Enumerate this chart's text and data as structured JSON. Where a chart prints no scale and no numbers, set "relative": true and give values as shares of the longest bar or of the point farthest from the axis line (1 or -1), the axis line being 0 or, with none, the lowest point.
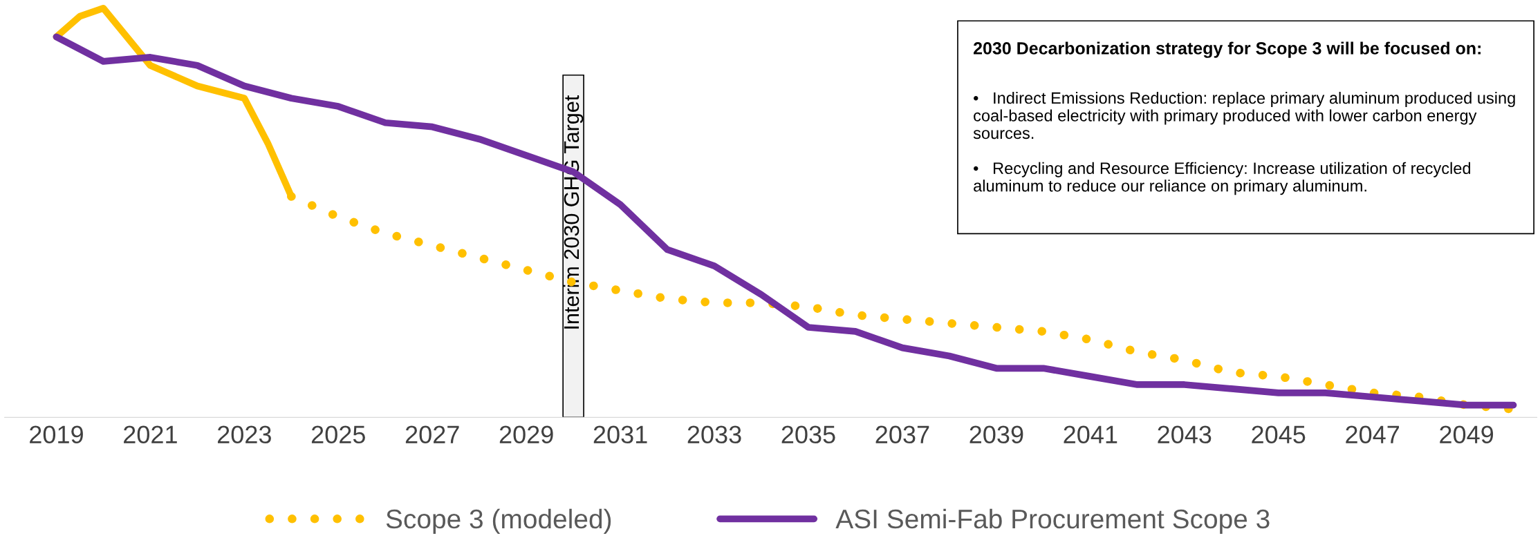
{
  "chart_data": {
    "type": "line",
    "relative": true,
    "x": [
      2019,
      2019.5,
      2020,
      2021,
      2022,
      2023,
      2023.5,
      2024
    ],
    "xlim": [
      2017.9,
      2050.5
    ],
    "xticks": [
      2019,
      2021,
      2023,
      2025,
      2027,
      2029,
      2031,
      2033,
      2035,
      2037,
      2039,
      2041,
      2043,
      2045,
      2047,
      2049
    ],
    "series": [
      {
        "color": "#ffc000",
        "line_style": "solid",
        "values": [
          0.93,
          0.98,
          1.0,
          0.86,
          0.81,
          0.78,
          0.67,
          0.54
        ]
      },
      {
        "name": "Scope 3 (modeled)",
        "color": "#ffc000",
        "line_style": "dotted",
        "x": [
          2024,
          2025,
          2026,
          2027,
          2028,
          2029,
          2030,
          2031,
          2032,
          2033,
          2034,
          2035,
          2036,
          2037,
          2038,
          2039,
          2040,
          2041,
          2042,
          2043,
          2044,
          2045,
          2046,
          2047,
          2048,
          2049,
          2050
        ],
        "values": [
          0.54,
          0.49,
          0.45,
          0.42,
          0.39,
          0.36,
          0.33,
          0.31,
          0.29,
          0.28,
          0.28,
          0.27,
          0.25,
          0.24,
          0.23,
          0.22,
          0.21,
          0.19,
          0.16,
          0.14,
          0.11,
          0.1,
          0.08,
          0.06,
          0.05,
          0.03,
          0.02
        ]
      },
      {
        "name": "ASI Semi-Fab Procurement Scope 3",
        "color": "#7030a0",
        "line_style": "solid",
        "x": [
          2019,
          2020,
          2021,
          2022,
          2023,
          2024,
          2025,
          2026,
          2027,
          2028,
          2029,
          2030,
          2031,
          2032,
          2033,
          2034,
          2035,
          2036,
          2037,
          2038,
          2039,
          2040,
          2041,
          2042,
          2043,
          2044,
          2045,
          2046,
          2047,
          2048,
          2049,
          2050
        ],
        "values": [
          0.93,
          0.87,
          0.88,
          0.86,
          0.81,
          0.78,
          0.76,
          0.72,
          0.71,
          0.68,
          0.64,
          0.6,
          0.52,
          0.41,
          0.37,
          0.3,
          0.22,
          0.21,
          0.17,
          0.15,
          0.12,
          0.12,
          0.1,
          0.08,
          0.08,
          0.07,
          0.06,
          0.06,
          0.05,
          0.04,
          0.03,
          0.03
        ]
      }
    ],
    "bands": [
      {
        "axis": "x",
        "from": 2029.78,
        "to": 2030.22,
        "label": "Interim 2030 GHG Target",
        "color": "#f2f2f2"
      }
    ],
    "annotations": [
      "2030 Decarbonization strategy for Scope 3 will be focused on:",
      "•   Indirect Emissions Reduction: replace primary aluminum produced using coal-based electricity with primary produced with lower carbon energy sources.",
      "•   Recycling and Resource Efficiency: Increase utilization of recycled aluminum to reduce our reliance on primary aluminum."
    ],
    "legend": "bottom",
    "tick_labels": "x",
    "grid": false
  }
}
